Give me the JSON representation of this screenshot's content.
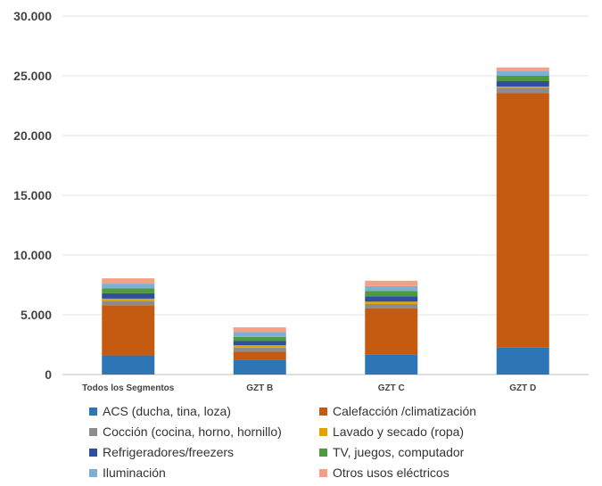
{
  "chart_data": {
    "type": "bar",
    "stacked": true,
    "categories": [
      "Todos los Segmentos",
      "GZT B",
      "GZT C",
      "GZT D"
    ],
    "y_tick_labels": [
      "0",
      "5.000",
      "10.000",
      "15.000",
      "20.000",
      "25.000",
      "30.000"
    ],
    "ylim": [
      0,
      30000
    ],
    "grid": true,
    "legend_position": "bottom",
    "series": [
      {
        "name": "ACS (ducha, tina, loza)",
        "color": "#2E75B6",
        "values": [
          1600,
          1200,
          1650,
          2250
        ]
      },
      {
        "name": "Calefacción /climatización",
        "color": "#C55A11",
        "values": [
          4200,
          700,
          3900,
          21300
        ]
      },
      {
        "name": "Cocción  (cocina, horno, hornillo)",
        "color": "#8C8C8C",
        "values": [
          350,
          350,
          350,
          450
        ]
      },
      {
        "name": "Lavado y secado  (ropa)",
        "color": "#E0A400",
        "values": [
          200,
          200,
          200,
          100
        ]
      },
      {
        "name": "Refrigeradores/freezers",
        "color": "#2F4F9E",
        "values": [
          450,
          350,
          450,
          450
        ]
      },
      {
        "name": "TV, juegos, computador",
        "color": "#4E9A3E",
        "values": [
          400,
          350,
          450,
          450
        ]
      },
      {
        "name": "Iluminación",
        "color": "#7BAFD4",
        "values": [
          400,
          400,
          400,
          400
        ]
      },
      {
        "name": "Otros usos eléctricos",
        "color": "#F4A087",
        "values": [
          450,
          400,
          450,
          300
        ]
      }
    ]
  }
}
